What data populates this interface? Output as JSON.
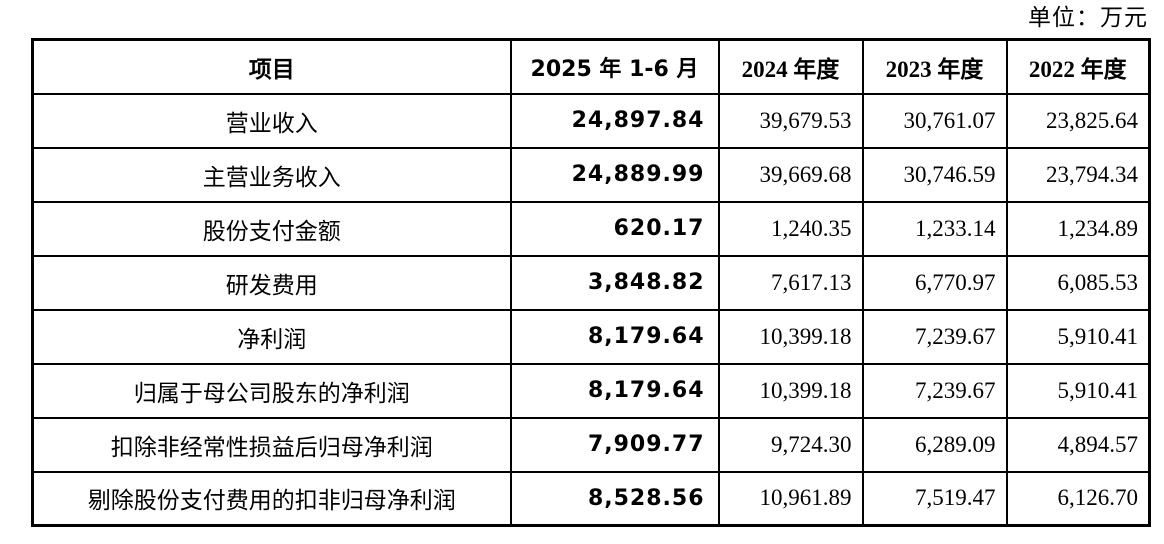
{
  "unit_label": "单位：万元",
  "colors": {
    "border": "#000000",
    "text": "#000000",
    "background": "#ffffff"
  },
  "table": {
    "headers": [
      "项目",
      "2025 年 1-6 月",
      "2024 年度",
      "2023 年度",
      "2022 年度"
    ],
    "rows": [
      {
        "label": "营业收入",
        "values": [
          "24,897.84",
          "39,679.53",
          "30,761.07",
          "23,825.64"
        ]
      },
      {
        "label": "主营业务收入",
        "values": [
          "24,889.99",
          "39,669.68",
          "30,746.59",
          "23,794.34"
        ]
      },
      {
        "label": "股份支付金额",
        "values": [
          "620.17",
          "1,240.35",
          "1,233.14",
          "1,234.89"
        ]
      },
      {
        "label": "研发费用",
        "values": [
          "3,848.82",
          "7,617.13",
          "6,770.97",
          "6,085.53"
        ]
      },
      {
        "label": "净利润",
        "values": [
          "8,179.64",
          "10,399.18",
          "7,239.67",
          "5,910.41"
        ]
      },
      {
        "label": "归属于母公司股东的净利润",
        "values": [
          "8,179.64",
          "10,399.18",
          "7,239.67",
          "5,910.41"
        ]
      },
      {
        "label": "扣除非经常性损益后归母净利润",
        "values": [
          "7,909.77",
          "9,724.30",
          "6,289.09",
          "4,894.57"
        ]
      },
      {
        "label": "剔除股份支付费用的扣非归母净利润",
        "values": [
          "8,528.56",
          "10,961.89",
          "7,519.47",
          "6,126.70"
        ]
      }
    ]
  }
}
